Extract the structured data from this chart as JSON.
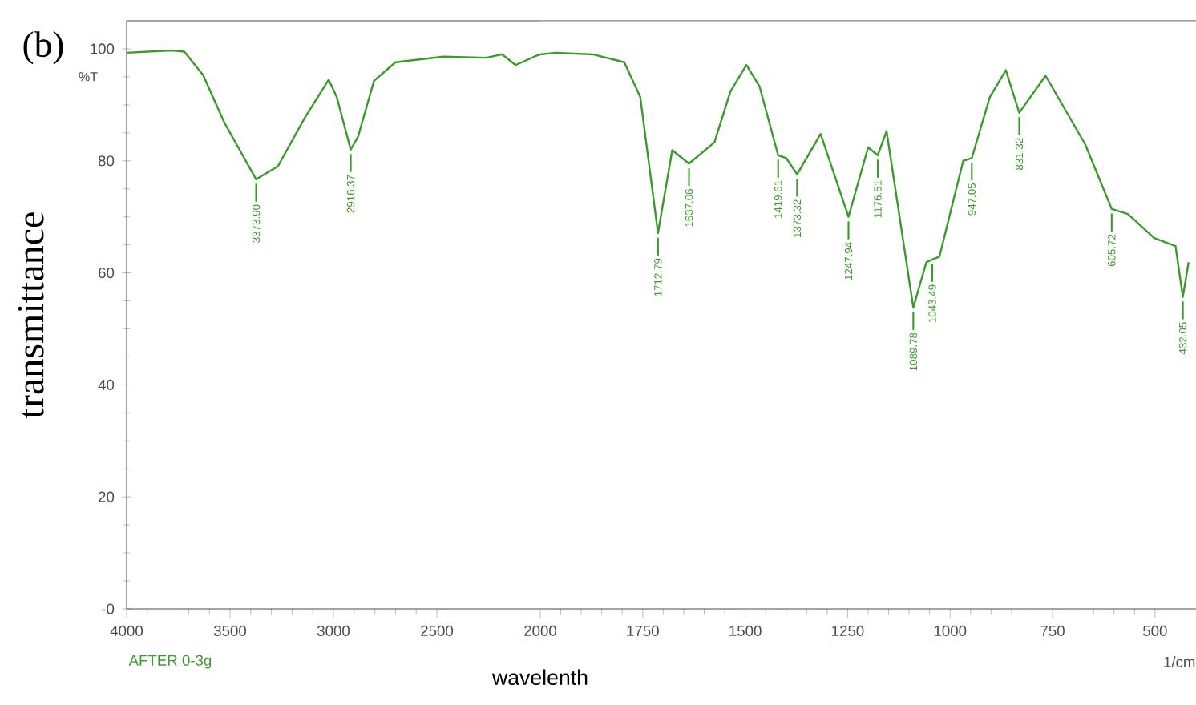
{
  "chart_data": [
    {
      "type": "line",
      "ylabel": "transmittance",
      "x": [
        4000,
        3783,
        3721,
        3630,
        3527,
        3373.9,
        3269,
        3140,
        3023,
        2984,
        2916.37,
        2881,
        2804,
        2700,
        2468,
        2261,
        2184,
        2119,
        2029,
        2000
      ],
      "series": [
        {
          "color": "#3a9b2a",
          "values": [
            99.3,
            99.7,
            99.5,
            95.3,
            86.8,
            76.7,
            79,
            87.6,
            94.5,
            91.4,
            82,
            84.3,
            94.3,
            97.6,
            98.6,
            98.4,
            99,
            97.1,
            98.6,
            99
          ]
        }
      ],
      "xlim": [
        4000,
        2000
      ],
      "ylim": [
        0,
        105
      ],
      "xticks": [
        4000,
        3500,
        3000,
        2500
      ],
      "yticks": [
        {
          "value": 0,
          "label": "-0"
        },
        20,
        40,
        60,
        80,
        100
      ],
      "grid": false,
      "marker": "none",
      "line_style": "solid",
      "annotations": [
        "(b)",
        "%T",
        "AFTER 0-3g",
        {
          "text": "3373.90",
          "x": 3373.9,
          "y": 76.7
        },
        {
          "text": "2916.37",
          "x": 2916.37,
          "y": 82
        }
      ]
    },
    {
      "type": "line",
      "xlabel": "wavelenth",
      "x": [
        2000,
        1962,
        1872,
        1795,
        1756,
        1712.79,
        1678,
        1637.06,
        1575,
        1536,
        1497,
        1465,
        1419.61,
        1400,
        1373.32,
        1316,
        1247.94,
        1200,
        1176.51,
        1155,
        1089.78,
        1058,
        1043.49,
        1026,
        968,
        947.05,
        903,
        864,
        831.32,
        767,
        670,
        605.72,
        566,
        502,
        450,
        432.05,
        418
      ],
      "series": [
        {
          "color": "#3a9b2a",
          "values": [
            99,
            99.3,
            99,
            97.6,
            91.4,
            67.1,
            81.9,
            79.5,
            83.3,
            92.4,
            97.1,
            93.3,
            81,
            80.5,
            77.6,
            84.8,
            70,
            82.4,
            81,
            85.3,
            53.8,
            61.9,
            62.4,
            62.9,
            80,
            80.5,
            91.4,
            96.2,
            88.6,
            95.2,
            82.9,
            71.4,
            70.5,
            66.2,
            64.8,
            55.7,
            61.9
          ]
        }
      ],
      "xlim": [
        2000,
        400
      ],
      "ylim": [
        0,
        105
      ],
      "xticks": [
        2000,
        1750,
        1500,
        1250,
        1000,
        750,
        500
      ],
      "tick_labels": "x",
      "grid": false,
      "marker": "none",
      "line_style": "solid",
      "annotations": [
        "1/cm",
        {
          "text": "1712.79",
          "x": 1712.79,
          "y": 67.1
        },
        {
          "text": "1637.06",
          "x": 1637.06,
          "y": 79.5
        },
        {
          "text": "1419.61",
          "x": 1419.61,
          "y": 81
        },
        {
          "text": "1373.32",
          "x": 1373.32,
          "y": 77.6
        },
        {
          "text": "1247.94",
          "x": 1247.94,
          "y": 70
        },
        {
          "text": "1176.51",
          "x": 1176.51,
          "y": 81
        },
        {
          "text": "1089.78",
          "x": 1089.78,
          "y": 53.8
        },
        {
          "text": "1043.49",
          "x": 1043.49,
          "y": 62.4
        },
        {
          "text": "947.05",
          "x": 947.05,
          "y": 80.5
        },
        {
          "text": "831.32",
          "x": 831.32,
          "y": 88.6
        },
        {
          "text": "605.72",
          "x": 605.72,
          "y": 71.4
        },
        {
          "text": "432.05",
          "x": 432.05,
          "y": 55.7
        }
      ]
    }
  ]
}
